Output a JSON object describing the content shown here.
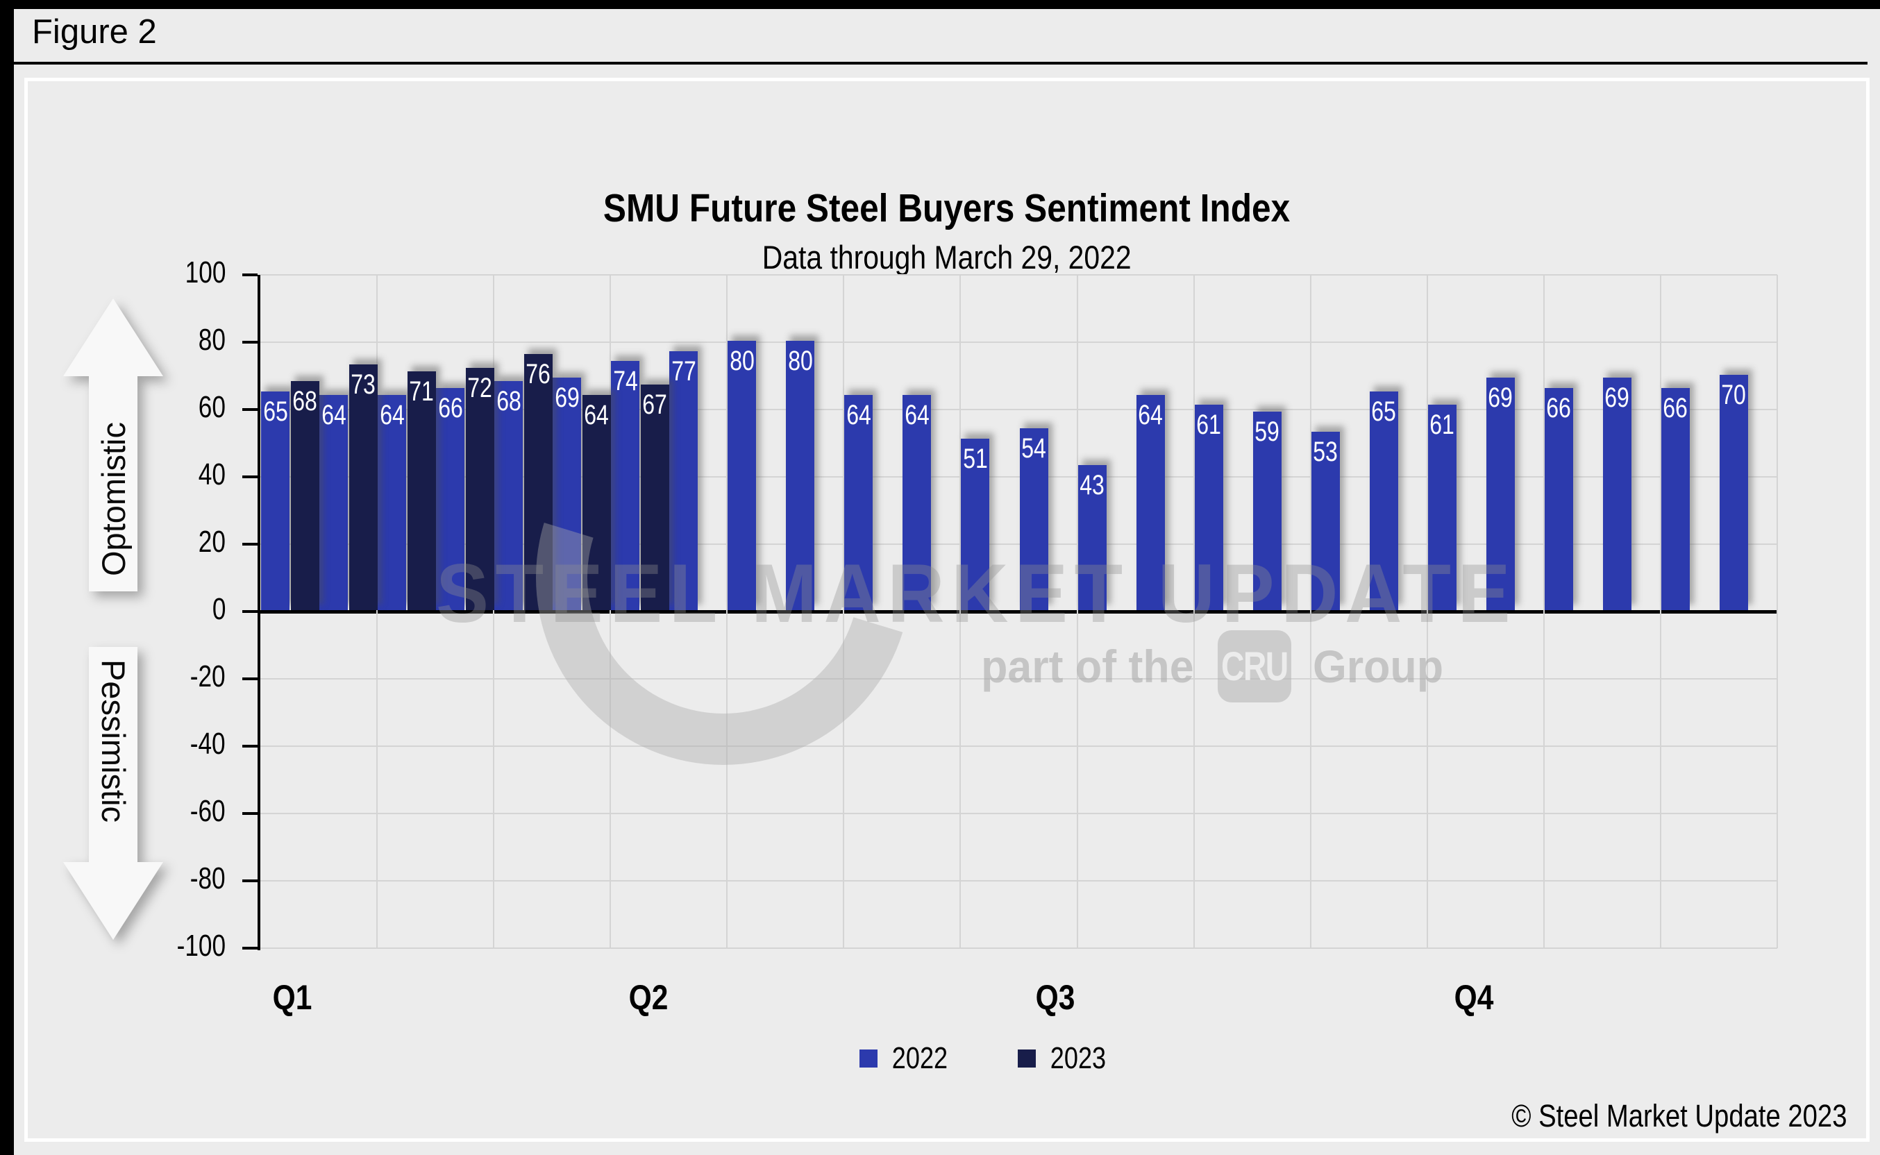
{
  "figure_label": "Figure 2",
  "copyright": "© Steel Market Update 2023",
  "watermark": {
    "line1": "STEEL MARKET UPDATE",
    "line2_prefix": "part of the",
    "line2_badge": "CRU",
    "line2_suffix": "Group"
  },
  "chart_data": {
    "type": "bar",
    "title": "SMU Future Steel Buyers Sentiment Index",
    "subtitle": "Data through March 29, 2022",
    "ylim": [
      -100,
      100
    ],
    "y_step": 20,
    "grid": true,
    "gridline_every_n_categories": 2,
    "categories_per_year": 26,
    "x_axis": {
      "labels": [
        "Q1",
        "Q2",
        "Q3",
        "Q4"
      ],
      "label_positions_pct": [
        2.1,
        25.6,
        52.4,
        80.0
      ]
    },
    "axis_annotations": {
      "positive": "Optomistic",
      "negative": "Pessimistic"
    },
    "legend_position": "bottom-center",
    "series": [
      {
        "name": "2022",
        "color": "#2c3aad",
        "values": [
          65,
          64,
          64,
          66,
          68,
          69,
          74,
          77,
          80,
          80,
          64,
          64,
          51,
          54,
          43,
          64,
          61,
          59,
          53,
          65,
          61,
          69,
          66,
          69,
          66,
          70
        ]
      },
      {
        "name": "2023",
        "color": "#181d4a",
        "values": [
          68,
          73,
          71,
          72,
          76,
          64,
          67
        ]
      }
    ]
  }
}
